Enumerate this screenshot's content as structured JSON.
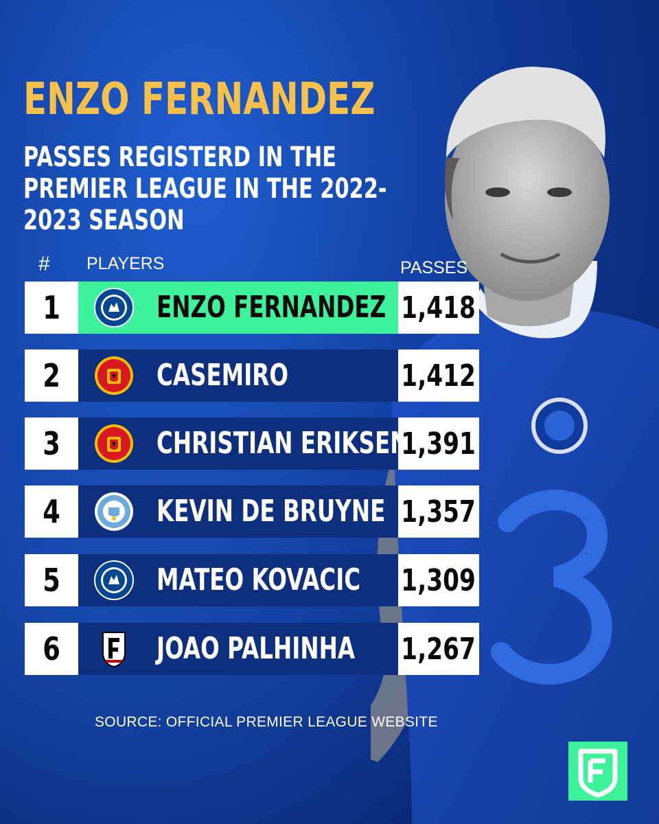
{
  "header": {
    "title": "ENZO FERNANDEZ",
    "subtitle": "PASSES REGISTERD IN THE PREMIER LEAGUE IN THE 2022-2023 SEASON"
  },
  "table": {
    "col_rank": "#",
    "col_players": "PLAYERS",
    "col_passes": "PASSES",
    "rows": [
      {
        "rank": "1",
        "player": "ENZO FERNANDEZ",
        "club": "Chelsea",
        "passes": "1,418",
        "highlight": true
      },
      {
        "rank": "2",
        "player": "CASEMIRO",
        "club": "Manchester United",
        "passes": "1,412"
      },
      {
        "rank": "3",
        "player": "CHRISTIAN ERIKSEN",
        "club": "Manchester United",
        "passes": "1,391"
      },
      {
        "rank": "4",
        "player": "KEVIN DE BRUYNE",
        "club": "Manchester City",
        "passes": "1,357"
      },
      {
        "rank": "5",
        "player": "MATEO KOVACIC",
        "club": "Chelsea",
        "passes": "1,309"
      },
      {
        "rank": "6",
        "player": "JOAO PALHINHA",
        "club": "Fulham",
        "passes": "1,267"
      }
    ]
  },
  "source": "SOURCE: OFFICIAL PREMIER LEAGUE WEBSITE",
  "colors": {
    "title": "#f7c04a",
    "highlight": "#3df29a",
    "bar": "#0d2f7d",
    "background": "#103a9a"
  }
}
